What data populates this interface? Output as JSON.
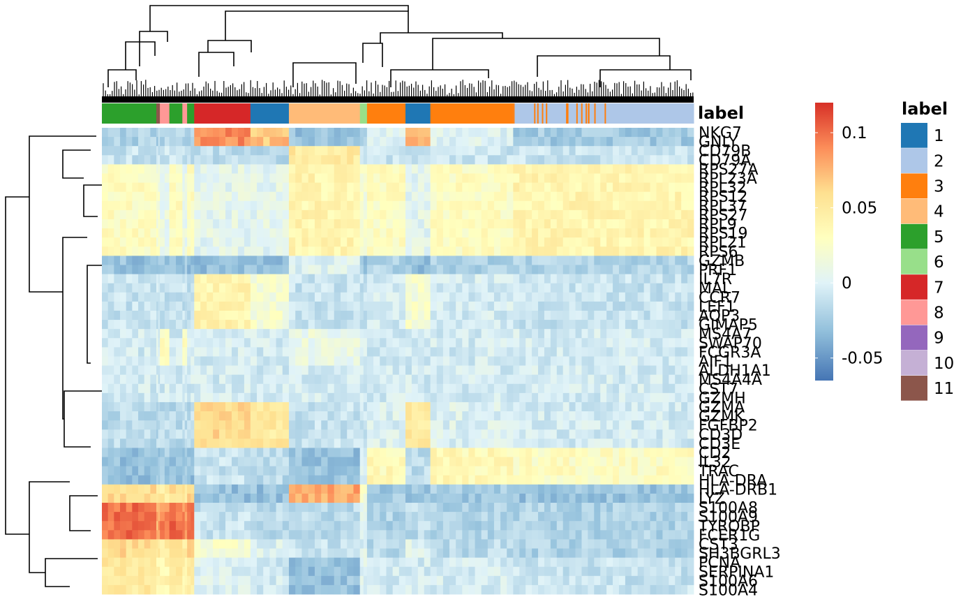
{
  "chart_data": {
    "type": "heatmap",
    "annotation_title": "label",
    "legend_title": "label",
    "color_scale": {
      "ticks": [
        {
          "value": 0.1,
          "label": "0.1"
        },
        {
          "value": 0.05,
          "label": "0.05"
        },
        {
          "value": 0,
          "label": "0"
        },
        {
          "value": -0.05,
          "label": "-0.05"
        }
      ],
      "min": -0.065,
      "max": 0.12,
      "colors": [
        "#4575b4",
        "#91bfdb",
        "#e0f3f8",
        "#ffffbf",
        "#fee090",
        "#fc8d59",
        "#d73027"
      ]
    },
    "clusters": [
      {
        "label": "1",
        "color": "#1f77b4"
      },
      {
        "label": "2",
        "color": "#aec7e8"
      },
      {
        "label": "3",
        "color": "#ff7f0e"
      },
      {
        "label": "4",
        "color": "#ffbb78"
      },
      {
        "label": "5",
        "color": "#2ca02c"
      },
      {
        "label": "6",
        "color": "#98df8a"
      },
      {
        "label": "7",
        "color": "#d62728"
      },
      {
        "label": "8",
        "color": "#ff9896"
      },
      {
        "label": "9",
        "color": "#9467bd"
      },
      {
        "label": "10",
        "color": "#c5b0d5"
      },
      {
        "label": "11",
        "color": "#8c564b"
      }
    ],
    "column_segments": [
      {
        "cluster": "5",
        "width": 0.092
      },
      {
        "cluster": "11",
        "width": 0.006
      },
      {
        "cluster": "8",
        "width": 0.016
      },
      {
        "cluster": "5",
        "width": 0.022
      },
      {
        "cluster": "8",
        "width": 0.008
      },
      {
        "cluster": "5",
        "width": 0.012
      },
      {
        "cluster": "7",
        "width": 0.095
      },
      {
        "cluster": "1",
        "width": 0.065
      },
      {
        "cluster": "4",
        "width": 0.12
      },
      {
        "cluster": "6",
        "width": 0.012
      },
      {
        "cluster": "3",
        "width": 0.065
      },
      {
        "cluster": "1",
        "width": 0.042
      },
      {
        "cluster": "3",
        "width": 0.14
      },
      {
        "cluster": "2",
        "width": 0.305
      }
    ],
    "genes": [
      "NKG7",
      "GNLY",
      "CD79B",
      "CD79A",
      "RPS27A",
      "RPL23A",
      "RPL32",
      "RPS12",
      "RPL37",
      "RPS27",
      "RPL9",
      "RPS19",
      "RPL21",
      "RPS6",
      "GZMB",
      "PRF1",
      "IL7R",
      "MAL",
      "CCR7",
      "LEF1",
      "AQP3",
      "GIMAP5",
      "MS4A7",
      "SWAP70",
      "FCGR3A",
      "AIF1",
      "ALDH1A1",
      "MS4A4A",
      "CST7",
      "GZMH",
      "GZMA",
      "GZMK",
      "FGFBP2",
      "CD3D",
      "CD3E",
      "CD2",
      "IL32",
      "TRAC",
      "HLA-DRA",
      "HLA-DRB1",
      "LYZ",
      "S100A8",
      "S100A9",
      "TYROBP",
      "FCER1G",
      "CST3",
      "SH3BGRL3",
      "PCNA",
      "SERPINA1",
      "S100A6",
      "S100A4"
    ],
    "gene_label_rows": [
      {
        "text": "NKG7",
        "row": 0
      },
      {
        "text": "GNLY",
        "row": 1
      },
      {
        "text": "CD79B",
        "row": 2
      },
      {
        "text": "CD79A",
        "row": 3
      },
      {
        "text": "RPS27A",
        "row": 4
      },
      {
        "text": "RPL23A",
        "row": 5
      },
      {
        "text": "RPL32",
        "row": 6
      },
      {
        "text": "RPS12",
        "row": 7
      },
      {
        "text": "RPL37",
        "row": 8
      },
      {
        "text": "RPS27",
        "row": 9
      },
      {
        "text": "RPL9",
        "row": 10
      },
      {
        "text": "RPS19",
        "row": 11
      },
      {
        "text": "RPL21",
        "row": 12
      },
      {
        "text": "RPS6",
        "row": 13
      },
      {
        "text": "GZMB",
        "row": 14
      },
      {
        "text": "PRF1",
        "row": 15
      },
      {
        "text": "IL7R",
        "row": 16
      },
      {
        "text": "MAL",
        "row": 17
      },
      {
        "text": "CCR7",
        "row": 18
      },
      {
        "text": "LEF1",
        "row": 19
      },
      {
        "text": "AQP3",
        "row": 20
      },
      {
        "text": "GIMAP5",
        "row": 21
      },
      {
        "text": "MS4A7",
        "row": 22
      },
      {
        "text": "SWAP70",
        "row": 23
      },
      {
        "text": "FCGR3A",
        "row": 24
      },
      {
        "text": "AIF1",
        "row": 25
      },
      {
        "text": "ALDH1A1",
        "row": 26
      },
      {
        "text": "MS4A4A",
        "row": 27
      },
      {
        "text": "CST7",
        "row": 28
      },
      {
        "text": "GZMH",
        "row": 29
      },
      {
        "text": "GZMA",
        "row": 30
      },
      {
        "text": "GZMK",
        "row": 31
      },
      {
        "text": "FGFBP2",
        "row": 32
      },
      {
        "text": "CD3D",
        "row": 33
      },
      {
        "text": "CD3E",
        "row": 34
      },
      {
        "text": "CD2",
        "row": 35
      },
      {
        "text": "IL32",
        "row": 36
      },
      {
        "text": "TRAC",
        "row": 37
      },
      {
        "text": "HLA-DRA",
        "row": 38
      },
      {
        "text": "HLA-DRB1",
        "row": 39
      },
      {
        "text": "LYZ",
        "row": 40
      },
      {
        "text": "S100A8",
        "row": 41
      },
      {
        "text": "S100A9",
        "row": 42
      },
      {
        "text": "TYROBP",
        "row": 43
      },
      {
        "text": "FCER1G",
        "row": 44
      },
      {
        "text": "CST3",
        "row": 45
      },
      {
        "text": "SH3BGRL3",
        "row": 46
      },
      {
        "text": "PCNA",
        "row": 47
      },
      {
        "text": "SERPINA1",
        "row": 48
      },
      {
        "text": "S100A6",
        "row": 49
      },
      {
        "text": "S100A4",
        "row": 50
      }
    ],
    "row_blocks": [
      {
        "rows": 2,
        "profile": {
          "5": -0.02,
          "11": -0.02,
          "8": -0.02,
          "7": 0.09,
          "1": 0.07,
          "4": -0.03,
          "6": -0.02,
          "3": 0.0,
          "2": -0.025
        }
      },
      {
        "rows": 2,
        "profile": {
          "5": -0.01,
          "11": -0.01,
          "8": -0.01,
          "7": -0.015,
          "1": -0.015,
          "4": 0.05,
          "6": -0.01,
          "3": -0.01,
          "2": -0.01
        }
      },
      {
        "rows": 10,
        "profile": {
          "5": 0.03,
          "11": 0.02,
          "8": 0.01,
          "7": 0.005,
          "1": 0.005,
          "4": 0.04,
          "6": 0.02,
          "3": 0.03,
          "2": 0.04
        }
      },
      {
        "rows": 2,
        "profile": {
          "5": -0.03,
          "11": -0.025,
          "8": -0.025,
          "7": -0.03,
          "1": -0.03,
          "4": 0.0,
          "6": -0.03,
          "3": -0.02,
          "2": -0.02
        }
      },
      {
        "rows": 6,
        "profile": {
          "5": -0.01,
          "11": -0.01,
          "8": -0.01,
          "7": 0.04,
          "1": 0.02,
          "4": -0.01,
          "6": -0.01,
          "3": -0.005,
          "2": -0.01
        }
      },
      {
        "rows": 4,
        "profile": {
          "5": -0.005,
          "11": 0.0,
          "8": 0.03,
          "7": -0.005,
          "1": -0.005,
          "4": 0.01,
          "6": -0.005,
          "3": -0.005,
          "2": -0.005
        }
      },
      {
        "rows": 4,
        "profile": {
          "5": -0.005,
          "11": -0.005,
          "8": -0.005,
          "7": -0.005,
          "1": -0.005,
          "4": -0.005,
          "6": -0.005,
          "3": -0.005,
          "2": -0.005
        }
      },
      {
        "rows": 5,
        "profile": {
          "5": -0.015,
          "11": -0.015,
          "8": -0.015,
          "7": 0.06,
          "1": 0.05,
          "4": -0.01,
          "6": -0.01,
          "3": 0.0,
          "2": -0.005
        }
      },
      {
        "rows": 4,
        "profile": {
          "5": -0.03,
          "11": -0.025,
          "8": -0.025,
          "7": -0.01,
          "1": -0.015,
          "4": -0.03,
          "6": 0.0,
          "3": 0.035,
          "2": 0.03
        }
      },
      {
        "rows": 2,
        "profile": {
          "5": 0.06,
          "11": 0.05,
          "8": 0.05,
          "7": -0.03,
          "1": -0.03,
          "4": 0.08,
          "6": 0.02,
          "3": -0.025,
          "2": -0.03
        }
      },
      {
        "rows": 4,
        "profile": {
          "5": 0.1,
          "11": 0.08,
          "8": 0.09,
          "7": -0.01,
          "1": -0.015,
          "4": -0.015,
          "6": 0.0,
          "3": -0.02,
          "2": -0.02
        }
      },
      {
        "rows": 2,
        "profile": {
          "5": 0.06,
          "11": 0.05,
          "8": 0.05,
          "7": 0.02,
          "1": 0.0,
          "4": -0.01,
          "6": 0.0,
          "3": -0.015,
          "2": -0.02
        }
      },
      {
        "rows": 4,
        "profile": {
          "5": 0.05,
          "11": 0.04,
          "8": 0.04,
          "7": 0.0,
          "1": -0.005,
          "4": -0.03,
          "6": 0.0,
          "3": -0.005,
          "2": -0.01
        }
      }
    ]
  }
}
